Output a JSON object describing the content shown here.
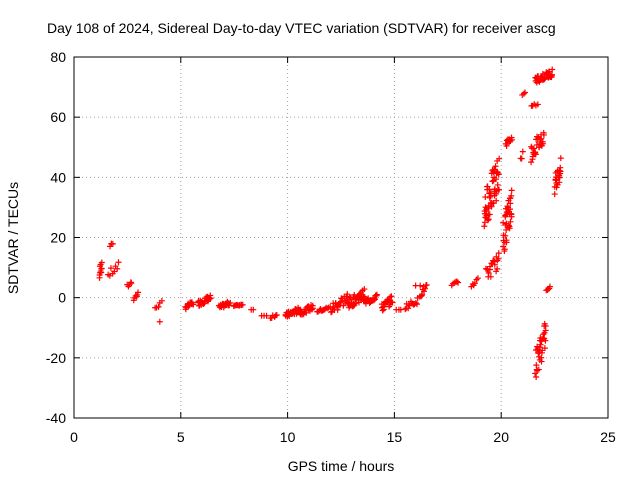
{
  "chart_data": {
    "type": "scatter",
    "title": "Day 108 of 2024, Sidereal Day-to-day VTEC variation (SDTVAR) for receiver ascg",
    "xlabel": "GPS time / hours",
    "ylabel": "SDTVAR / TECUs",
    "xlim": [
      0,
      25
    ],
    "ylim": [
      -40,
      80
    ],
    "xticks": [
      0,
      5,
      10,
      15,
      20,
      25
    ],
    "yticks": [
      -40,
      -20,
      0,
      20,
      40,
      60,
      80
    ],
    "grid": true,
    "marker": "+",
    "color": "#ff0000",
    "clusters": [
      {
        "x": [
          1.2,
          1.3
        ],
        "y": [
          5,
          14
        ],
        "n": 10
      },
      {
        "x": [
          1.7,
          1.8
        ],
        "y": [
          17,
          18.5
        ],
        "n": 4
      },
      {
        "x": [
          1.6,
          2.1
        ],
        "y": [
          6,
          12
        ],
        "n": 8
      },
      {
        "x": [
          2.5,
          2.7
        ],
        "y": [
          3,
          6
        ],
        "n": 5
      },
      {
        "x": [
          2.8,
          3.0
        ],
        "y": [
          -1,
          2
        ],
        "n": 6
      },
      {
        "x": [
          3.8,
          4.1
        ],
        "y": [
          -4,
          -1
        ],
        "n": 5
      },
      {
        "x": [
          4.0,
          4.0
        ],
        "y": [
          -8,
          -8
        ],
        "n": 1
      },
      {
        "x": [
          5.2,
          5.6
        ],
        "y": [
          -4,
          -1
        ],
        "n": 14
      },
      {
        "x": [
          5.8,
          6.4
        ],
        "y": [
          -3,
          1
        ],
        "n": 28
      },
      {
        "x": [
          6.8,
          7.3
        ],
        "y": [
          -4,
          -1
        ],
        "n": 22
      },
      {
        "x": [
          7.5,
          7.9
        ],
        "y": [
          -3,
          -2
        ],
        "n": 10
      },
      {
        "x": [
          8.3,
          8.4
        ],
        "y": [
          -4,
          -4
        ],
        "n": 2
      },
      {
        "x": [
          8.8,
          9.0
        ],
        "y": [
          -6,
          -6
        ],
        "n": 3
      },
      {
        "x": [
          9.2,
          9.5
        ],
        "y": [
          -7,
          -5
        ],
        "n": 6
      },
      {
        "x": [
          9.9,
          10.6
        ],
        "y": [
          -7,
          -3
        ],
        "n": 35
      },
      {
        "x": [
          10.6,
          11.2
        ],
        "y": [
          -6,
          -2
        ],
        "n": 20
      },
      {
        "x": [
          11.4,
          11.9
        ],
        "y": [
          -5,
          -3
        ],
        "n": 12
      },
      {
        "x": [
          12.0,
          12.8
        ],
        "y": [
          -6,
          2
        ],
        "n": 25
      },
      {
        "x": [
          12.8,
          13.6
        ],
        "y": [
          -4,
          3
        ],
        "n": 40
      },
      {
        "x": [
          13.6,
          14.2
        ],
        "y": [
          -3,
          2
        ],
        "n": 20
      },
      {
        "x": [
          14.4,
          14.9
        ],
        "y": [
          -5,
          1
        ],
        "n": 22
      },
      {
        "x": [
          15.1,
          15.3
        ],
        "y": [
          -4,
          -4
        ],
        "n": 3
      },
      {
        "x": [
          15.5,
          16.1
        ],
        "y": [
          -4,
          0
        ],
        "n": 14
      },
      {
        "x": [
          16.0,
          16.2
        ],
        "y": [
          4,
          4
        ],
        "n": 2
      },
      {
        "x": [
          16.2,
          16.5
        ],
        "y": [
          0,
          5
        ],
        "n": 10
      },
      {
        "x": [
          17.7,
          18.0
        ],
        "y": [
          3,
          6
        ],
        "n": 6
      },
      {
        "x": [
          18.6,
          18.9
        ],
        "y": [
          3,
          7
        ],
        "n": 6
      },
      {
        "x": [
          19.2,
          19.9
        ],
        "y": [
          22,
          48
        ],
        "n": 60
      },
      {
        "x": [
          19.3,
          19.9
        ],
        "y": [
          5,
          15
        ],
        "n": 20
      },
      {
        "x": [
          20.1,
          20.5
        ],
        "y": [
          14,
          38
        ],
        "n": 40
      },
      {
        "x": [
          20.2,
          20.5
        ],
        "y": [
          50,
          54
        ],
        "n": 10
      },
      {
        "x": [
          20.9,
          21.0
        ],
        "y": [
          45,
          49
        ],
        "n": 3
      },
      {
        "x": [
          21.0,
          21.1
        ],
        "y": [
          67,
          69
        ],
        "n": 3
      },
      {
        "x": [
          21.4,
          21.7
        ],
        "y": [
          63,
          65
        ],
        "n": 5
      },
      {
        "x": [
          21.4,
          22.0
        ],
        "y": [
          45,
          57
        ],
        "n": 30
      },
      {
        "x": [
          21.6,
          22.1
        ],
        "y": [
          -27,
          -7
        ],
        "n": 35
      },
      {
        "x": [
          21.6,
          22.4
        ],
        "y": [
          71,
          76
        ],
        "n": 40
      },
      {
        "x": [
          22.1,
          22.3
        ],
        "y": [
          2,
          4
        ],
        "n": 5
      },
      {
        "x": [
          22.5,
          22.8
        ],
        "y": [
          34,
          47
        ],
        "n": 22
      }
    ]
  }
}
